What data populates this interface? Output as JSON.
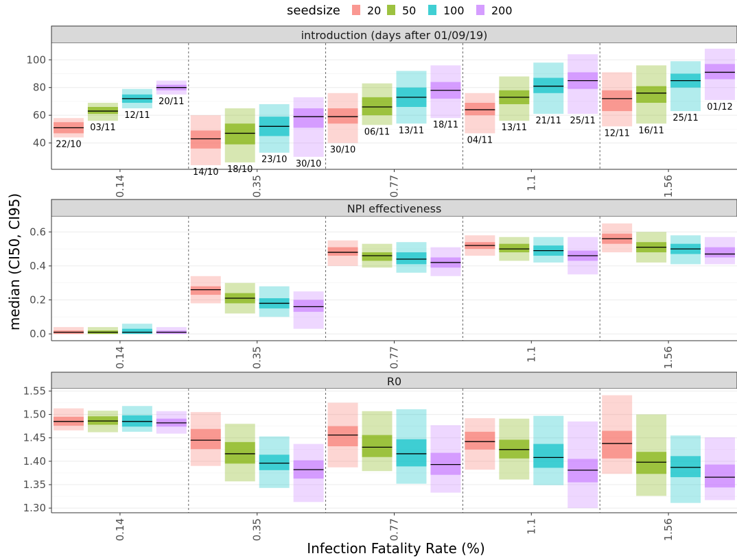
{
  "legend": {
    "title": "seedsize",
    "items": [
      {
        "label": "20",
        "color": "#F8766D"
      },
      {
        "label": "50",
        "color": "#7CAE00"
      },
      {
        "label": "100",
        "color": "#00BFC4"
      },
      {
        "label": "200",
        "color": "#C77CFF"
      }
    ]
  },
  "xlabel": "Infection Fatality Rate (%)",
  "ylabel": "median (CI50, CI95)",
  "chart_data": {
    "type": "crossbar",
    "categories": [
      "0.14",
      "0.35",
      "0.77",
      "1.1",
      "1.56"
    ],
    "seedsizes": [
      "20",
      "50",
      "100",
      "200"
    ],
    "panels": [
      {
        "title": "introduction (days after 01/09/19)",
        "ylim": [
          21,
          112
        ],
        "yticks": [
          40,
          60,
          80,
          100
        ],
        "tick_labels": [
          "40",
          "60",
          "80",
          "100"
        ],
        "data": [
          [
            [
              51,
              47,
              55,
              44,
              58,
              "22/10"
            ],
            [
              63,
              61,
              66,
              56,
              69,
              "03/11"
            ],
            [
              72,
              69,
              75,
              65,
              79,
              "12/11"
            ],
            [
              80,
              78,
              82,
              75,
              85,
              "20/11"
            ]
          ],
          [
            [
              43,
              36,
              49,
              24,
              60,
              "14/10"
            ],
            [
              47,
              39,
              54,
              26,
              65,
              "18/10"
            ],
            [
              52,
              45,
              59,
              33,
              68,
              "23/10"
            ],
            [
              59,
              51,
              65,
              30,
              73,
              "30/10"
            ]
          ],
          [
            [
              59,
              54,
              65,
              40,
              76,
              "30/10"
            ],
            [
              66,
              60,
              73,
              53,
              83,
              "06/11"
            ],
            [
              73,
              66,
              80,
              54,
              92,
              "13/11"
            ],
            [
              78,
              72,
              84,
              58,
              96,
              "18/11"
            ]
          ],
          [
            [
              64,
              60,
              69,
              47,
              76,
              "04/11"
            ],
            [
              73,
              68,
              78,
              56,
              88,
              "13/11"
            ],
            [
              81,
              76,
              87,
              61,
              98,
              "21/11"
            ],
            [
              85,
              79,
              91,
              61,
              104,
              "25/11"
            ]
          ],
          [
            [
              72,
              63,
              78,
              52,
              91,
              "12/11"
            ],
            [
              76,
              69,
              81,
              54,
              96,
              "16/11"
            ],
            [
              85,
              80,
              90,
              63,
              99,
              "25/11"
            ],
            [
              91,
              86,
              97,
              71,
              108,
              "01/12"
            ]
          ]
        ]
      },
      {
        "title": "NPI effectiveness",
        "ylim": [
          -0.04,
          0.69
        ],
        "yticks": [
          0.0,
          0.2,
          0.4,
          0.6
        ],
        "tick_labels": [
          "0.0",
          "0.2",
          "0.4",
          "0.6"
        ],
        "data": [
          [
            [
              0.01,
              0.0,
              0.02,
              0.0,
              0.04
            ],
            [
              0.01,
              0.0,
              0.02,
              0.0,
              0.04
            ],
            [
              0.01,
              0.0,
              0.03,
              0.0,
              0.06
            ],
            [
              0.01,
              0.0,
              0.02,
              0.0,
              0.04
            ]
          ],
          [
            [
              0.26,
              0.23,
              0.28,
              0.18,
              0.34
            ],
            [
              0.21,
              0.18,
              0.24,
              0.12,
              0.3
            ],
            [
              0.18,
              0.15,
              0.21,
              0.1,
              0.28
            ],
            [
              0.16,
              0.13,
              0.2,
              0.03,
              0.25
            ]
          ],
          [
            [
              0.48,
              0.46,
              0.51,
              0.4,
              0.55
            ],
            [
              0.46,
              0.43,
              0.48,
              0.39,
              0.53
            ],
            [
              0.44,
              0.41,
              0.48,
              0.36,
              0.54
            ],
            [
              0.42,
              0.39,
              0.45,
              0.34,
              0.51
            ]
          ],
          [
            [
              0.52,
              0.5,
              0.54,
              0.46,
              0.58
            ],
            [
              0.5,
              0.48,
              0.53,
              0.43,
              0.57
            ],
            [
              0.49,
              0.46,
              0.52,
              0.42,
              0.57
            ],
            [
              0.46,
              0.43,
              0.49,
              0.35,
              0.57
            ]
          ],
          [
            [
              0.56,
              0.53,
              0.59,
              0.48,
              0.65
            ],
            [
              0.51,
              0.48,
              0.54,
              0.42,
              0.6
            ],
            [
              0.5,
              0.47,
              0.53,
              0.41,
              0.58
            ],
            [
              0.47,
              0.45,
              0.51,
              0.41,
              0.57
            ]
          ]
        ]
      },
      {
        "title": "R0",
        "ylim": [
          1.29,
          1.555
        ],
        "yticks": [
          1.3,
          1.35,
          1.4,
          1.45,
          1.5,
          1.55
        ],
        "tick_labels": [
          "1.30",
          "1.35",
          "1.40",
          "1.45",
          "1.50",
          "1.55"
        ],
        "data": [
          [
            [
              1.485,
              1.476,
              1.495,
              1.466,
              1.513
            ],
            [
              1.486,
              1.478,
              1.496,
              1.462,
              1.508
            ],
            [
              1.485,
              1.474,
              1.498,
              1.463,
              1.518
            ],
            [
              1.482,
              1.474,
              1.491,
              1.459,
              1.507
            ]
          ],
          [
            [
              1.445,
              1.426,
              1.469,
              1.39,
              1.505
            ],
            [
              1.416,
              1.395,
              1.441,
              1.357,
              1.48
            ],
            [
              1.396,
              1.381,
              1.414,
              1.343,
              1.453
            ],
            [
              1.382,
              1.363,
              1.402,
              1.313,
              1.437
            ]
          ],
          [
            [
              1.456,
              1.432,
              1.475,
              1.387,
              1.525
            ],
            [
              1.43,
              1.409,
              1.456,
              1.379,
              1.507
            ],
            [
              1.416,
              1.389,
              1.447,
              1.352,
              1.511
            ],
            [
              1.393,
              1.371,
              1.418,
              1.333,
              1.477
            ]
          ],
          [
            [
              1.442,
              1.425,
              1.463,
              1.382,
              1.492
            ],
            [
              1.425,
              1.406,
              1.446,
              1.361,
              1.491
            ],
            [
              1.408,
              1.386,
              1.437,
              1.349,
              1.497
            ],
            [
              1.381,
              1.355,
              1.405,
              1.3,
              1.485
            ]
          ],
          [
            [
              1.438,
              1.406,
              1.465,
              1.373,
              1.541
            ],
            [
              1.398,
              1.373,
              1.42,
              1.326,
              1.5
            ],
            [
              1.387,
              1.366,
              1.411,
              1.311,
              1.455
            ],
            [
              1.366,
              1.344,
              1.393,
              1.317,
              1.451
            ]
          ]
        ]
      }
    ]
  }
}
